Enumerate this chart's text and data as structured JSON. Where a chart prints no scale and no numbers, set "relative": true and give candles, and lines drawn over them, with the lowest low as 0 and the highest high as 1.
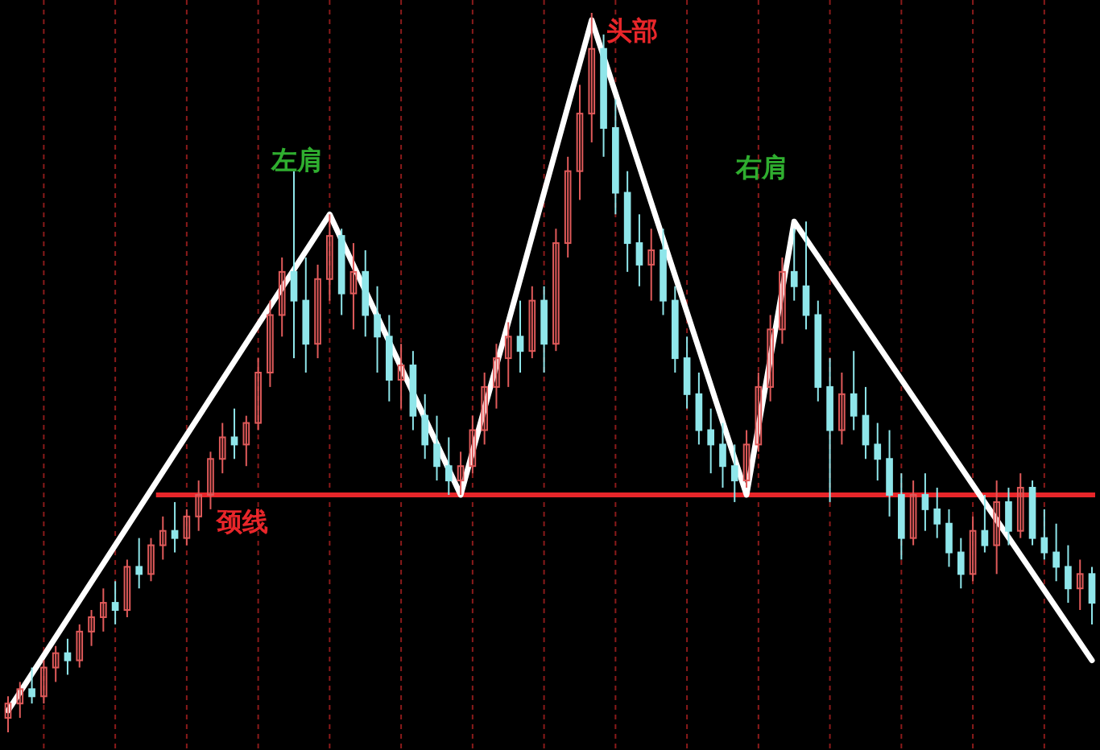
{
  "chart_data": {
    "type": "candlestick",
    "relative": true,
    "grid": "x",
    "categories": [
      null,
      null,
      null,
      null,
      null,
      null,
      null,
      null,
      null,
      null,
      null,
      null,
      null,
      null,
      null,
      null,
      null,
      null,
      null,
      null,
      null,
      null,
      null,
      null,
      null,
      null,
      null,
      null,
      null,
      null,
      null,
      null,
      null,
      null,
      null,
      null,
      null,
      null,
      null,
      null,
      null,
      null,
      null,
      null,
      null,
      null,
      null,
      null,
      null,
      null,
      null,
      null,
      null,
      null,
      null,
      null,
      null,
      null,
      null,
      null,
      null,
      null,
      null,
      null,
      null,
      null,
      null,
      null,
      null,
      null,
      null,
      null,
      null,
      null,
      null,
      null,
      null,
      null,
      null,
      null,
      null,
      null,
      null,
      null,
      null,
      null,
      null,
      null,
      null,
      null,
      null,
      null
    ],
    "ohlc": [
      [
        0.02,
        0.05,
        0,
        0.04
      ],
      [
        0.04,
        0.07,
        0.02,
        0.06
      ],
      [
        0.06,
        0.09,
        0.04,
        0.05
      ],
      [
        0.05,
        0.1,
        0.04,
        0.09
      ],
      [
        0.09,
        0.12,
        0.07,
        0.11
      ],
      [
        0.11,
        0.13,
        0.08,
        0.1
      ],
      [
        0.1,
        0.15,
        0.09,
        0.14
      ],
      [
        0.14,
        0.17,
        0.12,
        0.16
      ],
      [
        0.16,
        0.2,
        0.14,
        0.18
      ],
      [
        0.18,
        0.21,
        0.15,
        0.17
      ],
      [
        0.17,
        0.24,
        0.16,
        0.23
      ],
      [
        0.23,
        0.27,
        0.2,
        0.22
      ],
      [
        0.22,
        0.27,
        0.21,
        0.26
      ],
      [
        0.26,
        0.3,
        0.24,
        0.28
      ],
      [
        0.28,
        0.32,
        0.25,
        0.27
      ],
      [
        0.27,
        0.31,
        0.26,
        0.3
      ],
      [
        0.3,
        0.35,
        0.28,
        0.33
      ],
      [
        0.33,
        0.39,
        0.31,
        0.38
      ],
      [
        0.38,
        0.43,
        0.36,
        0.41
      ],
      [
        0.41,
        0.45,
        0.38,
        0.4
      ],
      [
        0.4,
        0.44,
        0.37,
        0.43
      ],
      [
        0.43,
        0.52,
        0.42,
        0.5
      ],
      [
        0.5,
        0.6,
        0.48,
        0.58
      ],
      [
        0.58,
        0.66,
        0.55,
        0.64
      ],
      [
        0.64,
        0.78,
        0.52,
        0.6
      ],
      [
        0.6,
        0.66,
        0.5,
        0.54
      ],
      [
        0.54,
        0.65,
        0.52,
        0.63
      ],
      [
        0.63,
        0.72,
        0.6,
        0.69
      ],
      [
        0.69,
        0.7,
        0.58,
        0.61
      ],
      [
        0.61,
        0.68,
        0.56,
        0.64
      ],
      [
        0.64,
        0.67,
        0.55,
        0.58
      ],
      [
        0.58,
        0.62,
        0.5,
        0.55
      ],
      [
        0.55,
        0.58,
        0.46,
        0.49
      ],
      [
        0.49,
        0.54,
        0.45,
        0.51
      ],
      [
        0.51,
        0.53,
        0.42,
        0.44
      ],
      [
        0.44,
        0.47,
        0.38,
        0.4
      ],
      [
        0.4,
        0.44,
        0.35,
        0.37
      ],
      [
        0.37,
        0.41,
        0.33,
        0.35
      ],
      [
        0.35,
        0.39,
        0.33,
        0.37
      ],
      [
        0.37,
        0.44,
        0.36,
        0.42
      ],
      [
        0.42,
        0.5,
        0.4,
        0.48
      ],
      [
        0.48,
        0.54,
        0.45,
        0.52
      ],
      [
        0.52,
        0.57,
        0.48,
        0.55
      ],
      [
        0.55,
        0.6,
        0.5,
        0.53
      ],
      [
        0.53,
        0.62,
        0.52,
        0.6
      ],
      [
        0.6,
        0.62,
        0.5,
        0.54
      ],
      [
        0.54,
        0.7,
        0.53,
        0.68
      ],
      [
        0.68,
        0.8,
        0.66,
        0.78
      ],
      [
        0.78,
        0.9,
        0.74,
        0.86
      ],
      [
        0.86,
        1,
        0.82,
        0.95
      ],
      [
        0.95,
        0.97,
        0.8,
        0.84
      ],
      [
        0.84,
        0.88,
        0.72,
        0.75
      ],
      [
        0.75,
        0.78,
        0.64,
        0.68
      ],
      [
        0.68,
        0.72,
        0.62,
        0.65
      ],
      [
        0.65,
        0.7,
        0.6,
        0.67
      ],
      [
        0.67,
        0.7,
        0.58,
        0.6
      ],
      [
        0.6,
        0.62,
        0.5,
        0.52
      ],
      [
        0.52,
        0.55,
        0.45,
        0.47
      ],
      [
        0.47,
        0.5,
        0.4,
        0.42
      ],
      [
        0.42,
        0.45,
        0.36,
        0.4
      ],
      [
        0.4,
        0.43,
        0.34,
        0.37
      ],
      [
        0.37,
        0.4,
        0.32,
        0.35
      ],
      [
        0.35,
        0.42,
        0.34,
        0.4
      ],
      [
        0.4,
        0.5,
        0.39,
        0.48
      ],
      [
        0.48,
        0.58,
        0.46,
        0.56
      ],
      [
        0.56,
        0.66,
        0.54,
        0.64
      ],
      [
        0.64,
        0.7,
        0.6,
        0.62
      ],
      [
        0.62,
        0.71,
        0.56,
        0.58
      ],
      [
        0.58,
        0.6,
        0.46,
        0.48
      ],
      [
        0.48,
        0.52,
        0.32,
        0.42
      ],
      [
        0.42,
        0.5,
        0.4,
        0.47
      ],
      [
        0.47,
        0.53,
        0.42,
        0.44
      ],
      [
        0.44,
        0.48,
        0.38,
        0.4
      ],
      [
        0.4,
        0.43,
        0.35,
        0.38
      ],
      [
        0.38,
        0.42,
        0.3,
        0.33
      ],
      [
        0.33,
        0.36,
        0.24,
        0.27
      ],
      [
        0.27,
        0.35,
        0.26,
        0.33
      ],
      [
        0.33,
        0.36,
        0.28,
        0.31
      ],
      [
        0.31,
        0.34,
        0.27,
        0.29
      ],
      [
        0.29,
        0.31,
        0.23,
        0.25
      ],
      [
        0.25,
        0.27,
        0.2,
        0.22
      ],
      [
        0.22,
        0.3,
        0.21,
        0.28
      ],
      [
        0.28,
        0.33,
        0.25,
        0.26
      ],
      [
        0.26,
        0.35,
        0.22,
        0.32
      ],
      [
        0.32,
        0.34,
        0.26,
        0.28
      ],
      [
        0.28,
        0.36,
        0.27,
        0.34
      ],
      [
        0.34,
        0.35,
        0.26,
        0.27
      ],
      [
        0.27,
        0.31,
        0.24,
        0.25
      ],
      [
        0.25,
        0.29,
        0.21,
        0.23
      ],
      [
        0.23,
        0.26,
        0.18,
        0.2
      ],
      [
        0.2,
        0.24,
        0.17,
        0.22
      ],
      [
        0.22,
        0.23,
        0.15,
        0.18
      ]
    ],
    "series": [
      {
        "type": "line",
        "color": "#ffffff",
        "values": [
          0.03,
          null,
          null,
          null,
          null,
          null,
          null,
          null,
          null,
          null,
          null,
          null,
          null,
          null,
          null,
          null,
          null,
          null,
          null,
          null,
          null,
          null,
          null,
          null,
          null,
          null,
          null,
          0.72,
          null,
          null,
          null,
          null,
          null,
          null,
          null,
          null,
          null,
          null,
          0.33,
          null,
          null,
          null,
          null,
          null,
          null,
          null,
          null,
          null,
          null,
          0.99,
          null,
          null,
          null,
          null,
          null,
          null,
          null,
          null,
          null,
          null,
          null,
          null,
          0.33,
          null,
          null,
          null,
          0.71,
          null,
          null,
          null,
          null,
          null,
          null,
          null,
          null,
          null,
          null,
          null,
          null,
          null,
          null,
          null,
          null,
          null,
          null,
          null,
          null,
          null,
          null,
          null,
          null,
          0.1
        ]
      }
    ],
    "ref_lines": [
      {
        "axis": "y",
        "value": 0.33,
        "label": "颈线",
        "color": "#e8262a"
      }
    ],
    "annotations": [
      "左肩",
      "头部",
      "右肩"
    ]
  }
}
